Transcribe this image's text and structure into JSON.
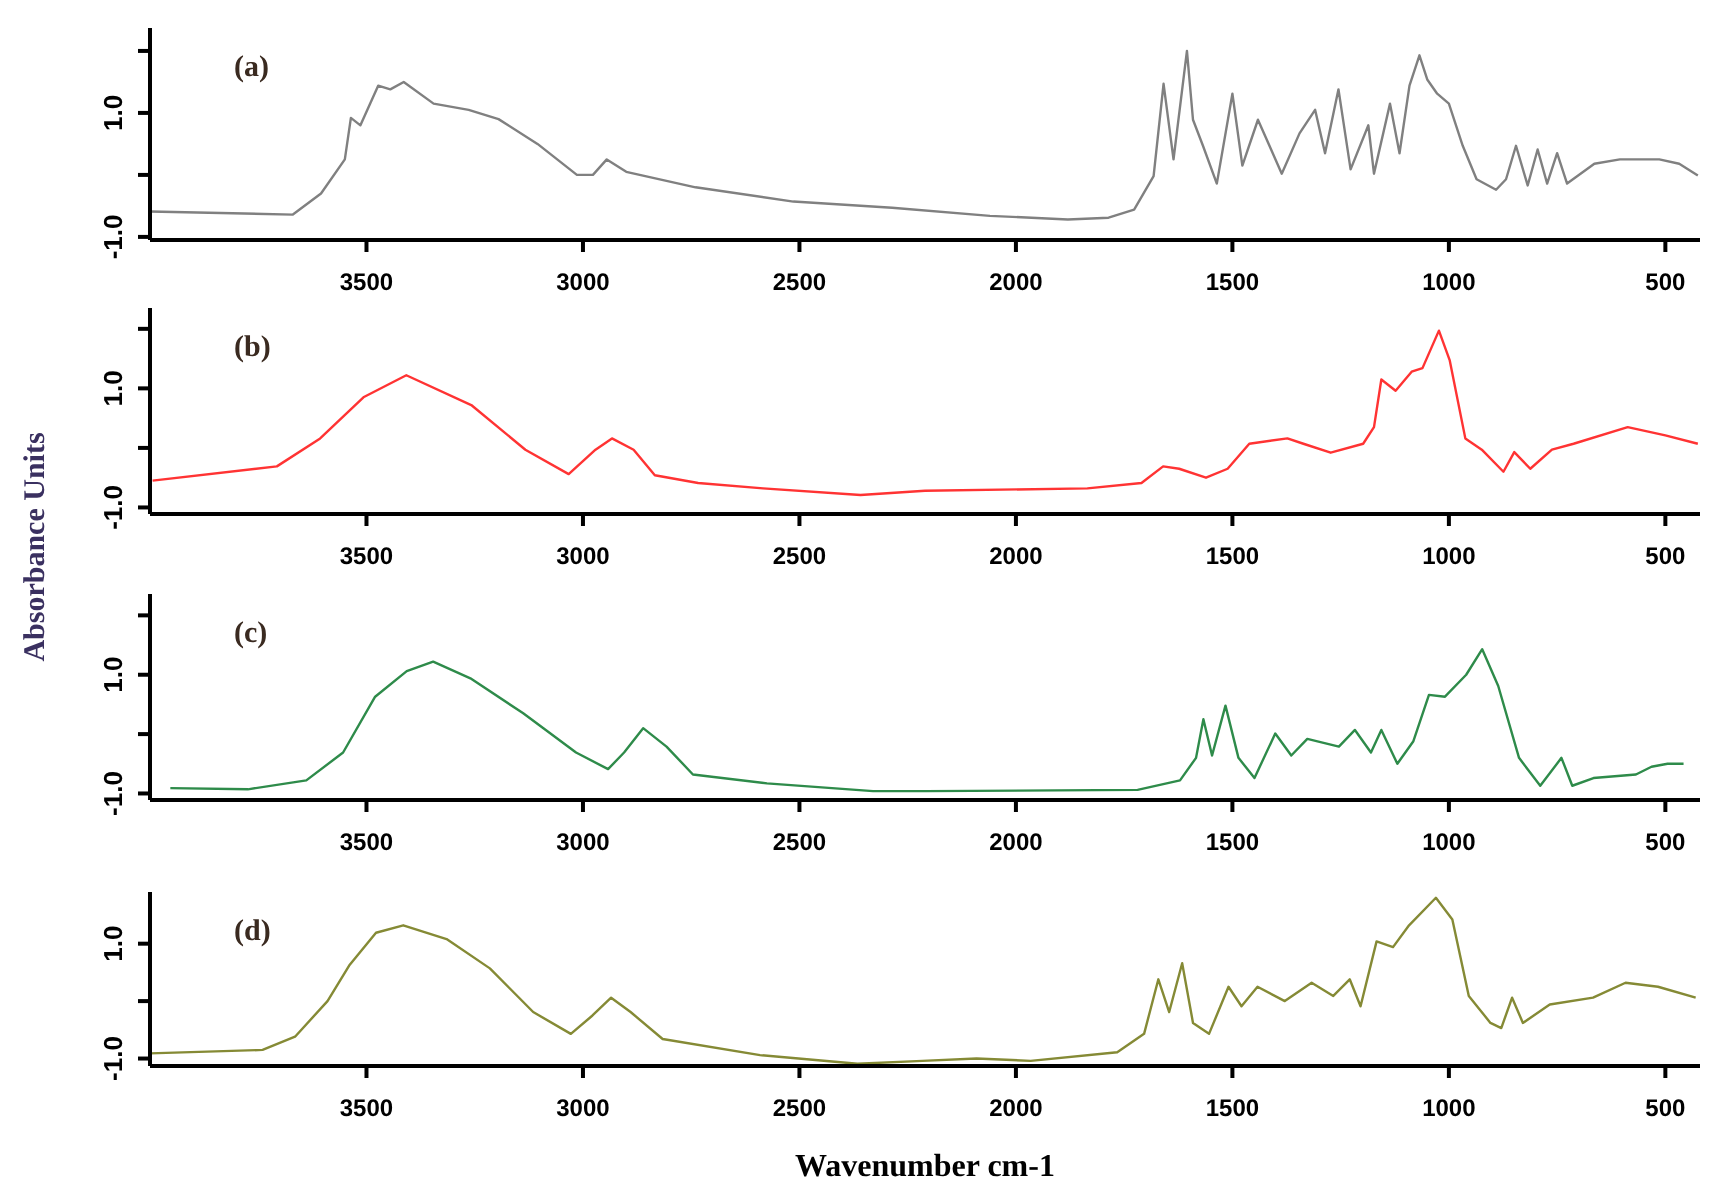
{
  "chart_data": [
    {
      "type": "line",
      "annotations": [
        "(a)"
      ],
      "xlim": [
        4000,
        420
      ],
      "xticks": [
        3500,
        3000,
        2500,
        2000,
        1500,
        1000,
        500
      ],
      "ylim": [
        -1.05,
        2.37
      ],
      "yticks": [
        {
          "value": -1,
          "label": "-1.0"
        },
        {
          "value": 0,
          "label": null
        },
        {
          "value": 1,
          "label": "1.0"
        },
        {
          "value": 2,
          "label": null
        }
      ],
      "series": [
        {
          "color": "#808080",
          "x": [
            4000,
            3670,
            3605,
            3550,
            3536,
            3514,
            3473,
            3445,
            3414,
            3345,
            3264,
            3195,
            3105,
            3014,
            2977,
            2945,
            2900,
            2740,
            2514,
            2286,
            2060,
            1880,
            1786,
            1727,
            1682,
            1659,
            1636,
            1605,
            1591,
            1568,
            1536,
            1500,
            1477,
            1441,
            1386,
            1345,
            1309,
            1286,
            1255,
            1227,
            1186,
            1173,
            1136,
            1114,
            1091,
            1068,
            1050,
            1027,
            1000,
            968,
            936,
            891,
            868,
            845,
            818,
            795,
            773,
            750,
            727,
            664,
            605,
            514,
            468,
            425
          ],
          "values": [
            -0.59,
            -0.64,
            -0.3,
            0.25,
            0.92,
            0.8,
            1.44,
            1.38,
            1.5,
            1.15,
            1.05,
            0.9,
            0.5,
            0,
            0,
            0.25,
            0.05,
            -0.2,
            -0.43,
            -0.53,
            -0.66,
            -0.72,
            -0.69,
            -0.56,
            -0.02,
            1.47,
            0.25,
            2.0,
            0.89,
            0.47,
            -0.14,
            1.31,
            0.15,
            0.89,
            0.02,
            0.67,
            1.05,
            0.35,
            1.38,
            0.09,
            0.8,
            0.02,
            1.15,
            0.35,
            1.44,
            1.93,
            1.54,
            1.31,
            1.15,
            0.47,
            -0.07,
            -0.24,
            -0.07,
            0.47,
            -0.17,
            0.41,
            -0.14,
            0.35,
            -0.14,
            0.18,
            0.25,
            0.25,
            0.18,
            -0.01
          ]
        }
      ]
    },
    {
      "type": "line",
      "annotations": [
        "(b)"
      ],
      "ylabel": "Absorbance Units",
      "xlim": [
        4000,
        420
      ],
      "xticks": [
        3500,
        3000,
        2500,
        2000,
        1500,
        1000,
        500
      ],
      "ylim": [
        -1.11,
        2.35
      ],
      "yticks": [
        {
          "value": -1,
          "label": "-1.0"
        },
        {
          "value": 0,
          "label": null
        },
        {
          "value": 1,
          "label": "1.0"
        },
        {
          "value": 2,
          "label": null
        }
      ],
      "series": [
        {
          "color": "#ff3333",
          "x": [
            3994,
            3707,
            3607,
            3507,
            3408,
            3258,
            3133,
            3033,
            2971,
            2933,
            2883,
            2834,
            2734,
            2584,
            2359,
            2210,
            1835,
            1710,
            1660,
            1623,
            1561,
            1511,
            1461,
            1373,
            1336,
            1273,
            1198,
            1173,
            1156,
            1123,
            1086,
            1061,
            1023,
            998,
            962,
            924,
            874,
            849,
            812,
            762,
            712,
            587,
            500,
            425
          ],
          "values": [
            -0.55,
            -0.31,
            0.16,
            0.85,
            1.22,
            0.72,
            -0.03,
            -0.44,
            -0.03,
            0.16,
            -0.03,
            -0.46,
            -0.59,
            -0.68,
            -0.79,
            -0.72,
            -0.68,
            -0.59,
            -0.31,
            -0.35,
            -0.5,
            -0.35,
            0.07,
            0.16,
            0.07,
            -0.08,
            0.07,
            0.35,
            1.15,
            0.96,
            1.28,
            1.34,
            1.97,
            1.47,
            0.16,
            -0.03,
            -0.4,
            -0.07,
            -0.35,
            -0.03,
            0.07,
            0.35,
            0.21,
            0.07
          ]
        }
      ]
    },
    {
      "type": "line",
      "annotations": [
        "(c)"
      ],
      "xlim": [
        4000,
        420
      ],
      "xticks": [
        3500,
        3000,
        2500,
        2000,
        1500,
        1000,
        500
      ],
      "ylim": [
        -1.11,
        2.36
      ],
      "yticks": [
        {
          "value": -1,
          "label": "-1.0"
        },
        {
          "value": 0,
          "label": null
        },
        {
          "value": 1,
          "label": "1.0"
        },
        {
          "value": 2,
          "label": null
        }
      ],
      "series": [
        {
          "color": "#2e8b4a",
          "x": [
            3953,
            3774,
            3639,
            3554,
            3480,
            3407,
            3346,
            3260,
            3138,
            3016,
            2942,
            2905,
            2861,
            2807,
            2746,
            2575,
            2330,
            2208,
            1719,
            1621,
            1584,
            1567,
            1547,
            1516,
            1486,
            1449,
            1401,
            1364,
            1327,
            1254,
            1217,
            1180,
            1156,
            1119,
            1082,
            1046,
            1009,
            960,
            923,
            886,
            838,
            789,
            740,
            715,
            666,
            568,
            532,
            495,
            458
          ],
          "values": [
            -0.91,
            -0.93,
            -0.78,
            -0.31,
            0.63,
            1.06,
            1.22,
            0.94,
            0.35,
            -0.31,
            -0.59,
            -0.31,
            0.1,
            -0.21,
            -0.68,
            -0.83,
            -0.96,
            -0.96,
            -0.94,
            -0.78,
            -0.4,
            0.25,
            -0.36,
            0.48,
            -0.4,
            -0.74,
            0.01,
            -0.36,
            -0.08,
            -0.21,
            0.07,
            -0.31,
            0.07,
            -0.5,
            -0.12,
            0.66,
            0.63,
            1.0,
            1.43,
            0.81,
            -0.4,
            -0.87,
            -0.4,
            -0.87,
            -0.74,
            -0.68,
            -0.55,
            -0.5,
            -0.5
          ]
        }
      ]
    },
    {
      "type": "line",
      "annotations": [
        "(d)"
      ],
      "xlabel": "Wavenumber cm-1",
      "xlim": [
        4000,
        420
      ],
      "xticks": [
        3500,
        3000,
        2500,
        2000,
        1500,
        1000,
        500
      ],
      "ylim": [
        -1.13,
        1.9
      ],
      "yticks": [
        {
          "value": -1,
          "label": "-1.0"
        },
        {
          "value": 0,
          "label": null
        },
        {
          "value": 1,
          "label": "1.0"
        }
      ],
      "series": [
        {
          "color": "#858a35",
          "x": [
            4000,
            3740,
            3665,
            3590,
            3540,
            3478,
            3415,
            3315,
            3215,
            3115,
            3028,
            2978,
            2935,
            2890,
            2816,
            2591,
            2366,
            2216,
            2091,
            1966,
            1766,
            1704,
            1671,
            1646,
            1616,
            1591,
            1554,
            1509,
            1479,
            1442,
            1379,
            1317,
            1267,
            1229,
            1204,
            1167,
            1129,
            1092,
            1030,
            992,
            954,
            904,
            879,
            854,
            829,
            767,
            667,
            592,
            517,
            430
          ],
          "values": [
            -0.91,
            -0.85,
            -0.62,
            0,
            0.62,
            1.19,
            1.32,
            1.08,
            0.57,
            -0.19,
            -0.57,
            -0.25,
            0.06,
            -0.19,
            -0.66,
            -0.94,
            -1.09,
            -1.04,
            -1.0,
            -1.04,
            -0.89,
            -0.57,
            0.38,
            -0.19,
            0.66,
            -0.38,
            -0.57,
            0.25,
            -0.09,
            0.25,
            0,
            0.32,
            0.09,
            0.38,
            -0.09,
            1.04,
            0.94,
            1.32,
            1.8,
            1.42,
            0.09,
            -0.38,
            -0.47,
            0.06,
            -0.38,
            -0.06,
            0.06,
            0.32,
            0.25,
            0.06
          ]
        }
      ]
    }
  ]
}
